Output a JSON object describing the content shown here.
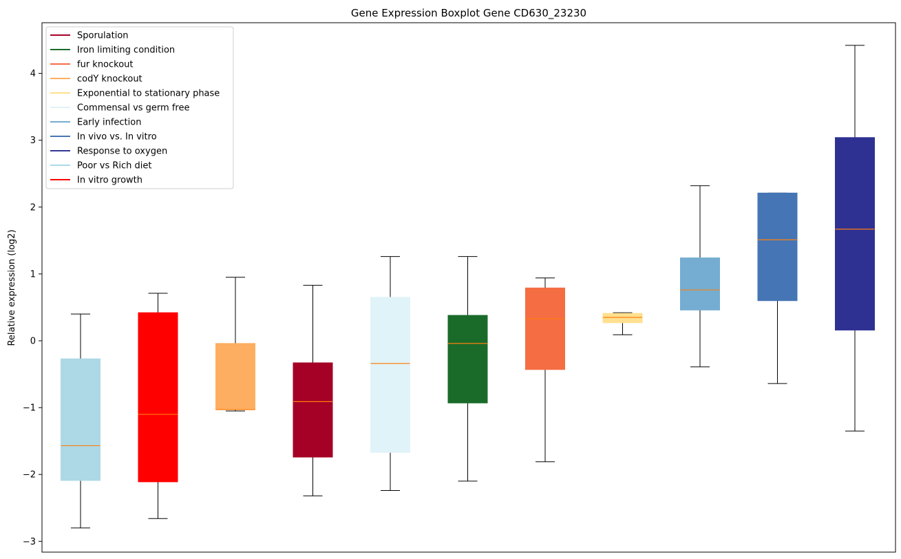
{
  "chart_data": {
    "type": "boxplot",
    "title": "Gene Expression Boxplot Gene CD630_23230",
    "xlabel": "",
    "ylabel": "Relative expression (log2)",
    "ylim": [
      -3.15,
      4.8
    ],
    "yticks": [
      -3,
      -2,
      -1,
      0,
      1,
      2,
      3,
      4
    ],
    "ytick_labels": [
      "−3",
      "−2",
      "−1",
      "0",
      "1",
      "2",
      "3",
      "4"
    ],
    "grid": false,
    "legend_position": "top-left",
    "median_color": "#ff7f0e",
    "legend": [
      {
        "label": "Sporulation",
        "color": "#a50026"
      },
      {
        "label": "Iron limiting condition",
        "color": "#1a6b2a"
      },
      {
        "label": "fur knockout",
        "color": "#f46d43"
      },
      {
        "label": "codY knockout",
        "color": "#fdae61"
      },
      {
        "label": "Exponential to stationary phase",
        "color": "#fee090"
      },
      {
        "label": "Commensal vs germ free",
        "color": "#e0f3f8"
      },
      {
        "label": "Early infection",
        "color": "#74add1"
      },
      {
        "label": "In vivo vs. In vitro",
        "color": "#4575b4"
      },
      {
        "label": "Response to oxygen",
        "color": "#313695"
      },
      {
        "label": "Poor vs Rich diet",
        "color": "#abd9e9"
      },
      {
        "label": "In vitro growth",
        "color": "#ff0000"
      }
    ],
    "boxes": [
      {
        "condition": "Poor vs Rich diet",
        "color": "#add8e6",
        "whisker_low": -2.8,
        "q1": -2.09,
        "median": -1.57,
        "q3": -0.27,
        "whisker_high": 0.4
      },
      {
        "condition": "In vitro growth",
        "color": "#ff0000",
        "whisker_low": -2.66,
        "q1": -2.11,
        "median": -1.1,
        "q3": 0.42,
        "whisker_high": 0.71
      },
      {
        "condition": "codY knockout",
        "color": "#fdae61",
        "whisker_low": -1.05,
        "q1": -1.03,
        "median": -1.03,
        "q3": -0.04,
        "whisker_high": 0.95
      },
      {
        "condition": "Sporulation",
        "color": "#a50026",
        "whisker_low": -2.32,
        "q1": -1.74,
        "median": -0.91,
        "q3": -0.33,
        "whisker_high": 0.83
      },
      {
        "condition": "Commensal vs germ free",
        "color": "#e0f3f8",
        "whisker_low": -2.24,
        "q1": -1.67,
        "median": -0.34,
        "q3": 0.65,
        "whisker_high": 1.26
      },
      {
        "condition": "Iron limiting condition",
        "color": "#1a6b2a",
        "whisker_low": -2.1,
        "q1": -0.93,
        "median": -0.04,
        "q3": 0.38,
        "whisker_high": 1.26
      },
      {
        "condition": "fur knockout",
        "color": "#f46d43",
        "whisker_low": -1.81,
        "q1": -0.43,
        "median": 0.33,
        "q3": 0.79,
        "whisker_high": 0.94
      },
      {
        "condition": "Exponential to stationary phase",
        "color": "#fee090",
        "whisker_low": 0.09,
        "q1": 0.27,
        "median": 0.35,
        "q3": 0.41,
        "whisker_high": 0.42
      },
      {
        "condition": "Early infection",
        "color": "#74add1",
        "whisker_low": -0.39,
        "q1": 0.46,
        "median": 0.76,
        "q3": 1.24,
        "whisker_high": 2.32
      },
      {
        "condition": "In vivo vs. In vitro",
        "color": "#4575b4",
        "whisker_low": -0.64,
        "q1": 0.6,
        "median": 1.51,
        "q3": 2.21,
        "whisker_high": 2.21
      },
      {
        "condition": "Response to oxygen",
        "color": "#2e3192",
        "whisker_low": -1.35,
        "q1": 0.16,
        "median": 1.67,
        "q3": 3.04,
        "whisker_high": 4.42
      }
    ]
  }
}
